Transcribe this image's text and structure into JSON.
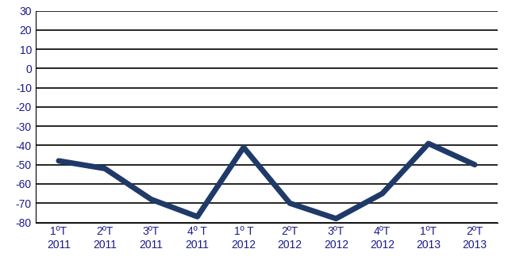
{
  "chart_data": {
    "type": "line",
    "categories": [
      "1ºT\n2011",
      "2ºT\n2011",
      "3ºT\n2011",
      "4º T\n2011",
      "1º T\n2012",
      "2ºT\n2012",
      "3ºT\n2012",
      "4ºT\n2012",
      "1ºT\n2013",
      "2ºT\n2013"
    ],
    "values": [
      -48,
      -52,
      -68,
      -77,
      -41,
      -70,
      -78,
      -65,
      -39,
      -50
    ],
    "color": "#1f3a68",
    "ylim": [
      -80,
      30
    ],
    "yticks": [
      -80,
      -70,
      -60,
      -50,
      -40,
      -30,
      -20,
      -10,
      0,
      10,
      20,
      30
    ],
    "grid": true
  }
}
